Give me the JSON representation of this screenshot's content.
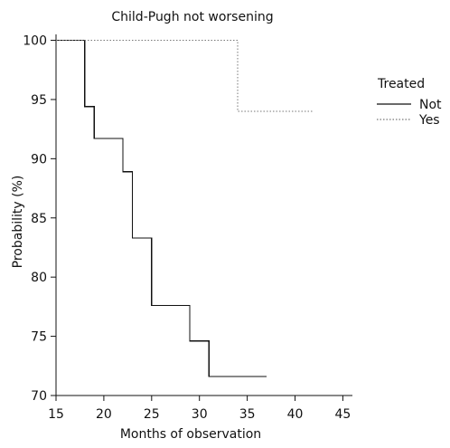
{
  "chart_data": {
    "type": "line",
    "title": "Child-Pugh not worsening",
    "xlabel": "Months of observation",
    "ylabel": "Probability (%)",
    "xlim": [
      15,
      46
    ],
    "ylim": [
      70,
      100.5
    ],
    "x_ticks": [
      15,
      20,
      25,
      30,
      35,
      40,
      45
    ],
    "y_ticks": [
      70,
      75,
      80,
      85,
      90,
      95,
      100
    ],
    "grid": false,
    "legend_position": "right",
    "legend_title": "Treated",
    "series": [
      {
        "name": "Not",
        "line_style": "solid",
        "color": "#111111",
        "points": [
          {
            "x": 15,
            "y": 100
          },
          {
            "x": 18,
            "y": 100
          },
          {
            "x": 18,
            "y": 94.4
          },
          {
            "x": 19,
            "y": 94.4
          },
          {
            "x": 19,
            "y": 91.7
          },
          {
            "x": 22,
            "y": 91.7
          },
          {
            "x": 22,
            "y": 88.9
          },
          {
            "x": 23,
            "y": 88.9
          },
          {
            "x": 23,
            "y": 83.3
          },
          {
            "x": 25,
            "y": 83.3
          },
          {
            "x": 25,
            "y": 77.6
          },
          {
            "x": 29,
            "y": 77.6
          },
          {
            "x": 29,
            "y": 74.6
          },
          {
            "x": 31,
            "y": 74.6
          },
          {
            "x": 31,
            "y": 71.6
          },
          {
            "x": 37,
            "y": 71.6
          }
        ]
      },
      {
        "name": "Yes",
        "line_style": "dotted",
        "color": "#777777",
        "points": [
          {
            "x": 15,
            "y": 100
          },
          {
            "x": 34,
            "y": 100
          },
          {
            "x": 34,
            "y": 94.0
          },
          {
            "x": 42,
            "y": 94.0
          }
        ]
      }
    ]
  }
}
